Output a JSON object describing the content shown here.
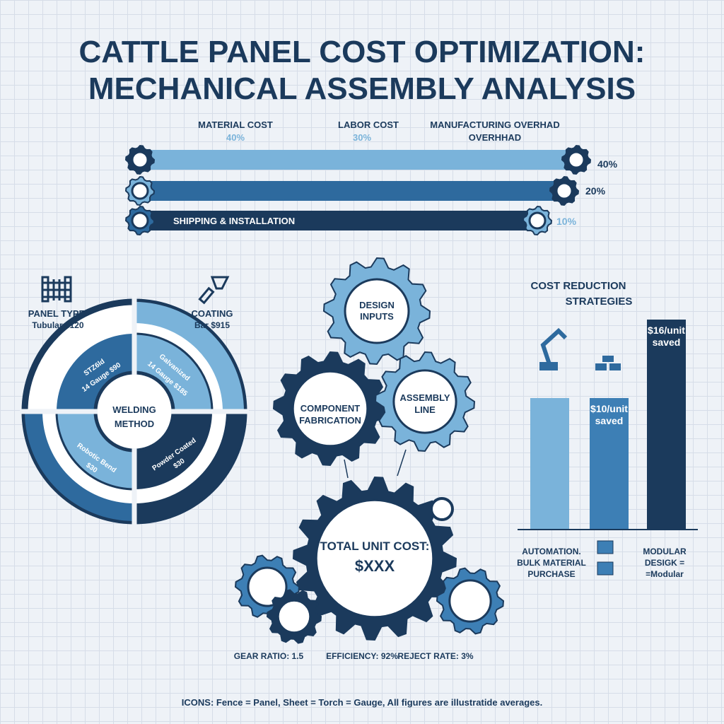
{
  "title": {
    "line1": "CATTLE PANEL COST OPTIMIZATION:",
    "line2": "MECHANICAL ASSEMBLY ANALYSIS"
  },
  "colors": {
    "light": "#7ab3da",
    "medium": "#2e6a9e",
    "mid2": "#3d7fb5",
    "dark": "#1b3a5c",
    "text": "#1b3a5c"
  },
  "cost_breakdown": {
    "headers": [
      {
        "label": "MATERIAL COST",
        "value": "40%"
      },
      {
        "label": "LABOR COST",
        "value": "30%"
      },
      {
        "label": "MANUFACTURING OVERHAD",
        "value": "OVERHHAD"
      }
    ],
    "bars": [
      {
        "label": "",
        "value": "40%",
        "left_icon": "fence-gear-icon",
        "right_icon": "material-gear-icon"
      },
      {
        "label": "",
        "value": "20%",
        "left_icon": "worker-gear-icon",
        "right_icon": "factory-gear-icon"
      },
      {
        "label": "SHIPPING & INSTALLATION",
        "value": "10%",
        "left_icon": "sheet-gear-icon",
        "right_icon": "truck-gear-icon"
      }
    ]
  },
  "ring": {
    "center": [
      "WELDING",
      "METHOD"
    ],
    "panel_type": {
      "label": "PANEL TYPE",
      "value": "Tubular $120"
    },
    "coating": {
      "label": "COATING",
      "value": "Bar  $915"
    },
    "segments": [
      {
        "line1": "STZ6ld",
        "line2": "14 Gauge $90"
      },
      {
        "line1": "Galvanized",
        "line2": "14 Gauge $185"
      },
      {
        "line1": "Robotic Bend",
        "line2": "$30"
      },
      {
        "line1": "Powder Coated",
        "line2": "$30"
      }
    ]
  },
  "gears": {
    "design": [
      "DESIGN",
      "INPUTS"
    ],
    "component": [
      "COMPONENT",
      "FABRICATION"
    ],
    "assembly": [
      "ASSEMBLY",
      "LINE"
    ],
    "total": [
      "TOTAL UNIT COST:",
      "$XXX"
    ],
    "stats": [
      "GEAR RATIO: 1.5",
      "EFFICIENCY: 92%",
      "REJECT RATE: 3%"
    ]
  },
  "chart_data": {
    "type": "bar",
    "title": "COST REDUCTION STRATEGIES",
    "title_lines": [
      "COST REDUCTION",
      "STRATEGIES"
    ],
    "categories": [
      "AUTOMATION",
      "BULK MATERIAL PURCHASE",
      "MODULAR DESIGN"
    ],
    "category_labels": [
      [
        "AUTOMATION.",
        "BULK MATERIAL",
        "PURCHASE"
      ],
      [],
      [
        "MODULAR",
        "DESIGK =",
        "=Modular"
      ]
    ],
    "values": [
      10,
      10,
      16
    ],
    "data_labels": [
      [
        "",
        ""
      ],
      [
        "$10/unit",
        "saved"
      ],
      [
        "$16/unit",
        "saved"
      ]
    ],
    "colors": [
      "#7ab3da",
      "#3d7fb5",
      "#1b3a5c"
    ],
    "icons": [
      "robot-arm-icon",
      "gold-bars-icon",
      "stacked-cubes-icon"
    ],
    "ylim": [
      0,
      16
    ],
    "grid": false
  },
  "footer": "ICONS: Fence = Panel, Sheet = Torch = Gauge, All figures are illustratide averages."
}
